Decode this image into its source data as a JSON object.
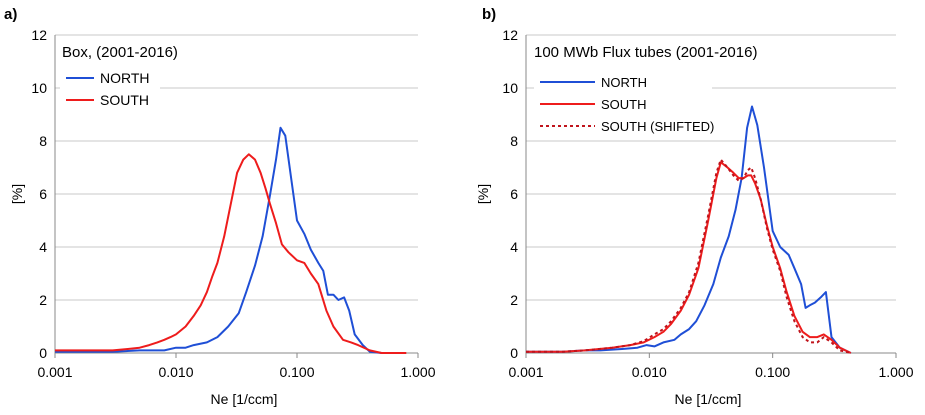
{
  "chart_data": [
    {
      "type": "line",
      "panel_label": "a)",
      "title": "Box, (2001-2016)",
      "xlabel": "Ne [1/ccm]",
      "ylabel": "[%]",
      "xscale": "log",
      "xlim": [
        0.001,
        1.0
      ],
      "ylim": [
        0,
        12
      ],
      "x_tick_labels": [
        "0.001",
        "0.010",
        "0.100",
        "1.000"
      ],
      "y_tick_labels": [
        "0",
        "2",
        "4",
        "6",
        "8",
        "10",
        "12"
      ],
      "grid": "horizontal",
      "legend_position": "top-left",
      "series": [
        {
          "name": "NORTH",
          "color": "#1f4fd6",
          "dash": false,
          "x": [
            0.001,
            0.0015,
            0.002,
            0.003,
            0.005,
            0.008,
            0.01,
            0.012,
            0.014,
            0.018,
            0.022,
            0.027,
            0.033,
            0.038,
            0.045,
            0.052,
            0.06,
            0.067,
            0.073,
            0.08,
            0.09,
            0.1,
            0.115,
            0.13,
            0.15,
            0.165,
            0.18,
            0.2,
            0.22,
            0.245,
            0.27,
            0.3,
            0.35,
            0.4,
            0.5,
            0.6
          ],
          "y": [
            0.05,
            0.05,
            0.05,
            0.05,
            0.1,
            0.1,
            0.2,
            0.2,
            0.3,
            0.4,
            0.6,
            1.0,
            1.5,
            2.3,
            3.3,
            4.4,
            6.0,
            7.3,
            8.5,
            8.2,
            6.5,
            5.0,
            4.5,
            3.9,
            3.4,
            3.1,
            2.2,
            2.2,
            2.0,
            2.1,
            1.6,
            0.7,
            0.3,
            0.05,
            0.0,
            0.0
          ]
        },
        {
          "name": "SOUTH",
          "color": "#ee1c1c",
          "dash": false,
          "x": [
            0.001,
            0.002,
            0.003,
            0.004,
            0.005,
            0.006,
            0.007,
            0.008,
            0.009,
            0.01,
            0.012,
            0.014,
            0.016,
            0.018,
            0.02,
            0.022,
            0.025,
            0.028,
            0.032,
            0.036,
            0.04,
            0.045,
            0.05,
            0.055,
            0.06,
            0.067,
            0.075,
            0.085,
            0.1,
            0.115,
            0.13,
            0.15,
            0.175,
            0.2,
            0.24,
            0.28,
            0.32,
            0.4,
            0.5,
            0.8
          ],
          "y": [
            0.1,
            0.1,
            0.1,
            0.15,
            0.2,
            0.3,
            0.4,
            0.5,
            0.6,
            0.7,
            1.0,
            1.4,
            1.8,
            2.3,
            2.9,
            3.4,
            4.4,
            5.5,
            6.8,
            7.3,
            7.5,
            7.3,
            6.8,
            6.2,
            5.6,
            4.9,
            4.1,
            3.8,
            3.5,
            3.4,
            3.0,
            2.6,
            1.6,
            1.0,
            0.5,
            0.4,
            0.3,
            0.1,
            0.0,
            0.0
          ]
        }
      ]
    },
    {
      "type": "line",
      "panel_label": "b)",
      "title": "100 MWb Flux tubes (2001-2016)",
      "xlabel": "Ne [1/ccm]",
      "ylabel": "[%]",
      "xscale": "log",
      "xlim": [
        0.001,
        1.0
      ],
      "ylim": [
        0,
        12
      ],
      "x_tick_labels": [
        "0.001",
        "0.010",
        "0.100",
        "1.000"
      ],
      "y_tick_labels": [
        "0",
        "2",
        "4",
        "6",
        "8",
        "10",
        "12"
      ],
      "grid": "horizontal",
      "legend_position": "top-left",
      "series": [
        {
          "name": "NORTH",
          "color": "#1f4fd6",
          "dash": false,
          "x": [
            0.001,
            0.002,
            0.003,
            0.004,
            0.006,
            0.008,
            0.0095,
            0.011,
            0.013,
            0.016,
            0.018,
            0.021,
            0.024,
            0.028,
            0.033,
            0.038,
            0.044,
            0.05,
            0.056,
            0.062,
            0.068,
            0.075,
            0.085,
            0.1,
            0.115,
            0.135,
            0.15,
            0.17,
            0.185,
            0.2,
            0.22,
            0.245,
            0.27,
            0.3,
            0.35,
            0.43
          ],
          "y": [
            0.05,
            0.05,
            0.1,
            0.1,
            0.15,
            0.2,
            0.3,
            0.25,
            0.4,
            0.5,
            0.7,
            0.9,
            1.2,
            1.8,
            2.6,
            3.6,
            4.4,
            5.4,
            6.6,
            8.5,
            9.3,
            8.6,
            7.0,
            4.6,
            4.0,
            3.7,
            3.2,
            2.6,
            1.7,
            1.8,
            1.9,
            2.1,
            2.3,
            0.6,
            0.2,
            0.0
          ]
        },
        {
          "name": "SOUTH",
          "color": "#ee1c1c",
          "dash": false,
          "x": [
            0.001,
            0.002,
            0.003,
            0.005,
            0.007,
            0.009,
            0.011,
            0.013,
            0.015,
            0.018,
            0.021,
            0.025,
            0.03,
            0.035,
            0.038,
            0.043,
            0.048,
            0.053,
            0.058,
            0.063,
            0.067,
            0.072,
            0.08,
            0.09,
            0.1,
            0.115,
            0.13,
            0.15,
            0.175,
            0.2,
            0.23,
            0.26,
            0.3,
            0.35,
            0.43
          ],
          "y": [
            0.05,
            0.05,
            0.1,
            0.2,
            0.3,
            0.4,
            0.6,
            0.8,
            1.1,
            1.6,
            2.2,
            3.2,
            5.0,
            6.6,
            7.2,
            7.0,
            6.8,
            6.6,
            6.6,
            6.7,
            6.7,
            6.4,
            5.8,
            4.8,
            4.0,
            3.2,
            2.3,
            1.4,
            0.8,
            0.6,
            0.6,
            0.7,
            0.5,
            0.2,
            0.0
          ]
        },
        {
          "name": "SOUTH (SHIFTED)",
          "color": "#c0141c",
          "dash": true,
          "x": [
            0.001,
            0.002,
            0.003,
            0.005,
            0.007,
            0.009,
            0.011,
            0.013,
            0.015,
            0.018,
            0.021,
            0.025,
            0.03,
            0.035,
            0.038,
            0.043,
            0.048,
            0.053,
            0.058,
            0.063,
            0.067,
            0.072,
            0.08,
            0.09,
            0.1,
            0.115,
            0.13,
            0.15,
            0.175,
            0.2,
            0.23,
            0.26,
            0.3,
            0.35,
            0.43
          ],
          "y": [
            0.05,
            0.05,
            0.1,
            0.2,
            0.3,
            0.45,
            0.7,
            0.9,
            1.2,
            1.7,
            2.3,
            3.4,
            5.2,
            6.8,
            7.3,
            7.0,
            6.7,
            6.5,
            6.6,
            6.9,
            7.0,
            6.6,
            5.8,
            4.7,
            3.9,
            3.1,
            2.1,
            1.2,
            0.6,
            0.4,
            0.4,
            0.6,
            0.4,
            0.1,
            0.0
          ]
        }
      ]
    }
  ]
}
